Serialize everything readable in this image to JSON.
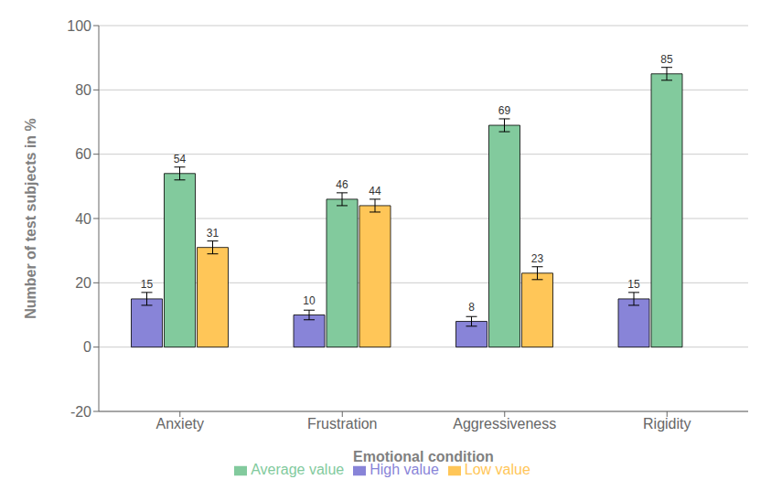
{
  "chart_data": {
    "type": "bar",
    "categories": [
      "Anxiety",
      "Frustration",
      "Aggressiveness",
      "Rigidity"
    ],
    "series": [
      {
        "name": "High value",
        "color": "#8884d8",
        "values": [
          15,
          10,
          8,
          15
        ],
        "errors": [
          2,
          1.5,
          1.5,
          2
        ]
      },
      {
        "name": "Average value",
        "color": "#82ca9d",
        "values": [
          54,
          46,
          69,
          85
        ],
        "errors": [
          2,
          2,
          2,
          2
        ]
      },
      {
        "name": "Low value",
        "color": "#ffc658",
        "values": [
          31,
          44,
          23,
          0
        ],
        "errors": [
          2,
          2,
          2,
          1
        ]
      }
    ],
    "xlabel": "Emotional condition",
    "ylabel": "Number of test subjects in %",
    "ylim": [
      -20,
      100
    ],
    "yticks": [
      -20,
      0,
      20,
      40,
      60,
      80,
      100
    ],
    "grid": true,
    "legend": "bottom",
    "data_labels": true
  }
}
